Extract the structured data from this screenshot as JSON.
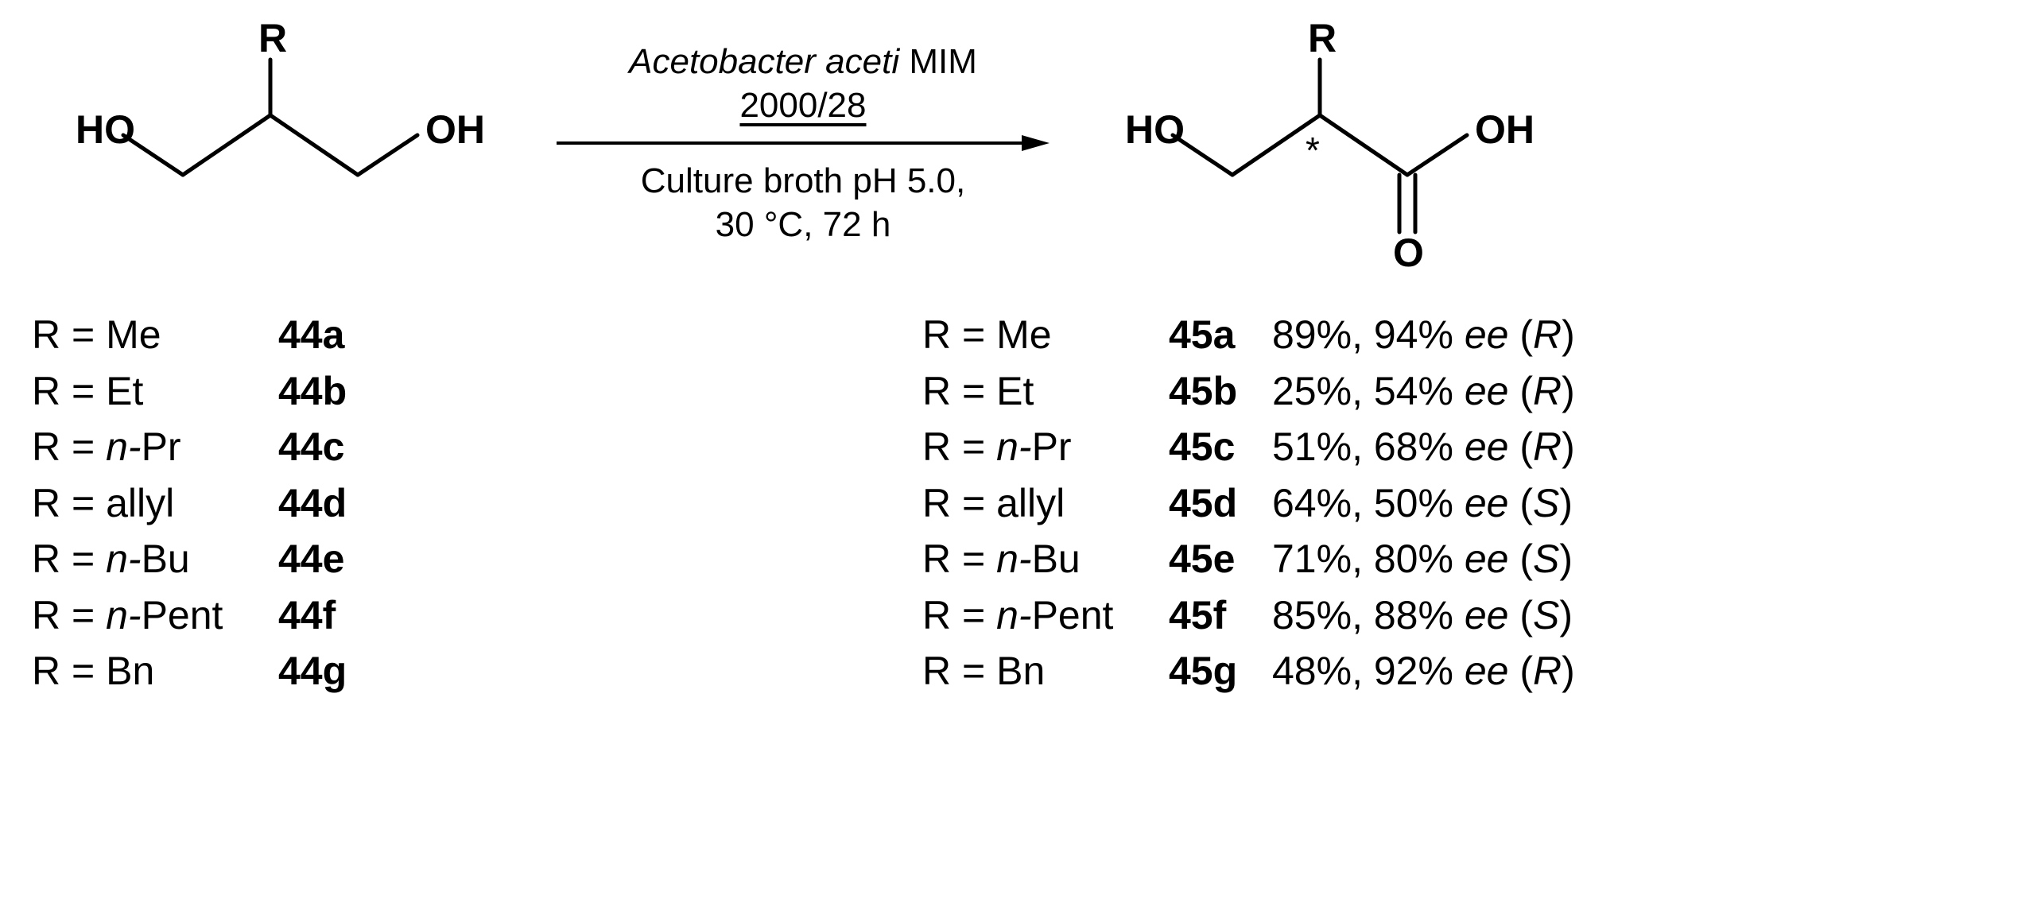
{
  "reaction": {
    "arrow_top_line1_prefix_italic": "Acetobacter aceti",
    "arrow_top_line1_suffix": " MIM",
    "arrow_top_line2": "2000/28",
    "arrow_bottom_line1": "Culture broth pH 5.0,",
    "arrow_bottom_line2": "30 °C, 72 h"
  },
  "left_structure": {
    "label_HO_left": "HO",
    "label_R": "R",
    "label_OH_right": "OH"
  },
  "right_structure": {
    "label_HO_left": "HO",
    "label_R": "R",
    "label_OH_right": "OH",
    "label_O": "O",
    "label_star": "*"
  },
  "substrates": [
    {
      "r_prefix": "R = ",
      "r_value": "Me",
      "r_italic_prefix": "",
      "compound": "44a"
    },
    {
      "r_prefix": "R = ",
      "r_value": "Et",
      "r_italic_prefix": "",
      "compound": "44b"
    },
    {
      "r_prefix": "R = ",
      "r_value": "Pr",
      "r_italic_prefix": "n-",
      "compound": "44c"
    },
    {
      "r_prefix": "R = ",
      "r_value": "allyl",
      "r_italic_prefix": "",
      "compound": "44d"
    },
    {
      "r_prefix": "R = ",
      "r_value": "Bu",
      "r_italic_prefix": "n-",
      "compound": "44e"
    },
    {
      "r_prefix": "R = ",
      "r_value": "Pent",
      "r_italic_prefix": "n-",
      "compound": "44f"
    },
    {
      "r_prefix": "R = ",
      "r_value": "Bn",
      "r_italic_prefix": "",
      "compound": "44g"
    }
  ],
  "products": [
    {
      "r_prefix": "R = ",
      "r_value": "Me",
      "r_italic_prefix": "",
      "compound": "45a",
      "yield": "89%",
      "ee": "94%",
      "config": "R"
    },
    {
      "r_prefix": "R = ",
      "r_value": "Et",
      "r_italic_prefix": "",
      "compound": "45b",
      "yield": "25%",
      "ee": "54%",
      "config": "R"
    },
    {
      "r_prefix": "R = ",
      "r_value": "Pr",
      "r_italic_prefix": "n-",
      "compound": "45c",
      "yield": "51%",
      "ee": "68%",
      "config": "R"
    },
    {
      "r_prefix": "R = ",
      "r_value": "allyl",
      "r_italic_prefix": "",
      "compound": "45d",
      "yield": "64%",
      "ee": "50%",
      "config": "S"
    },
    {
      "r_prefix": "R = ",
      "r_value": "Bu",
      "r_italic_prefix": "n-",
      "compound": "45e",
      "yield": "71%",
      "ee": "80%",
      "config": "S"
    },
    {
      "r_prefix": "R = ",
      "r_value": "Pent",
      "r_italic_prefix": "n-",
      "compound": "45f",
      "yield": "85%",
      "ee": "88%",
      "config": "S"
    },
    {
      "r_prefix": "R = ",
      "r_value": "Bn",
      "r_italic_prefix": "",
      "compound": "45g",
      "yield": "48%",
      "ee": "92%",
      "config": "R"
    }
  ],
  "style": {
    "font_size_data": 50,
    "font_size_arrow": 44,
    "font_size_atom": 50,
    "bond_stroke": "#000000",
    "bond_width": 5,
    "arrow_stroke": "#000000",
    "arrow_width": 4
  }
}
